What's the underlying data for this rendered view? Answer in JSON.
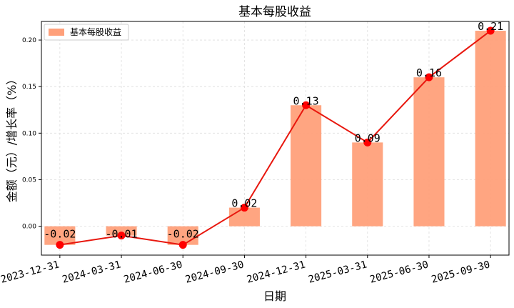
{
  "chart_data": {
    "type": "bar",
    "title": "基本每股收益",
    "xlabel": "日期",
    "ylabel": "金额（元）/增长率（%）",
    "categories": [
      "2023-12-31",
      "2024-03-31",
      "2024-06-30",
      "2024-09-30",
      "2024-12-31",
      "2025-03-31",
      "2025-06-30",
      "2025-09-30"
    ],
    "series": [
      {
        "name": "基本每股收益",
        "values": [
          -0.02,
          -0.01,
          -0.02,
          0.02,
          0.13,
          0.09,
          0.16,
          0.21
        ],
        "data_labels": [
          "-0.02",
          "-0.01",
          "-0.02",
          "0.02",
          "0.13",
          "0.09",
          "0.16",
          "0.21"
        ]
      }
    ],
    "overlay_line": {
      "same_values_as_series": true
    },
    "y_ticks": [
      0.0,
      0.05,
      0.1,
      0.15,
      0.2
    ],
    "y_tick_labels": [
      "0.00",
      "0.05",
      "0.10",
      "0.15",
      "0.20"
    ],
    "ylim": [
      -0.031,
      0.22
    ],
    "grid": true,
    "legend_position": "top-left",
    "colors": {
      "bar": "#ffa07a",
      "line": "#e8170e",
      "marker": "#ff0000",
      "grid": "#dddddd"
    }
  }
}
